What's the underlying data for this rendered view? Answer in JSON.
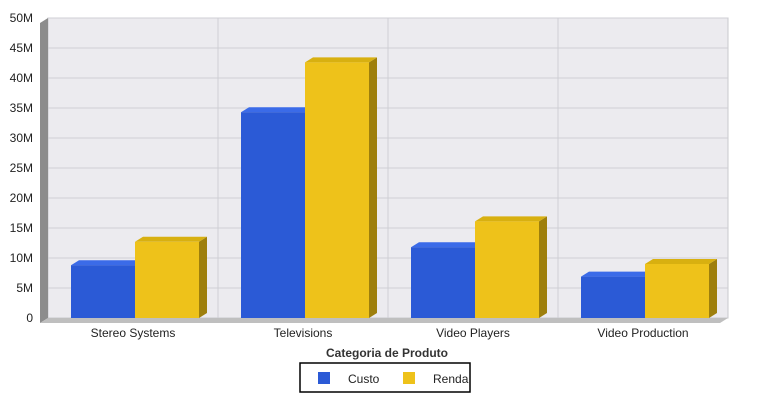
{
  "chart_data": {
    "type": "bar",
    "title": "",
    "xlabel": "Categoria de Produto",
    "ylabel": "",
    "categories": [
      "Stereo Systems",
      "Televisions",
      "Video Players",
      "Video Production"
    ],
    "series": [
      {
        "name": "Custo",
        "values": [
          8.8,
          34.3,
          11.8,
          6.9
        ],
        "color": "#2B5AD6",
        "side_color": "#1C3B92",
        "top_color": "#3B6BE8"
      },
      {
        "name": "Renda",
        "values": [
          12.7,
          42.6,
          16.1,
          9.0
        ],
        "color": "#EEC21A",
        "side_color": "#9E7F0C",
        "top_color": "#D8B010"
      }
    ],
    "value_unit": "millions",
    "ylim": [
      0,
      50
    ],
    "yticks": [
      "0",
      "5M",
      "10M",
      "15M",
      "20M",
      "25M",
      "30M",
      "35M",
      "40M",
      "45M",
      "50M"
    ],
    "grid": true,
    "legend_position": "bottom-center"
  }
}
